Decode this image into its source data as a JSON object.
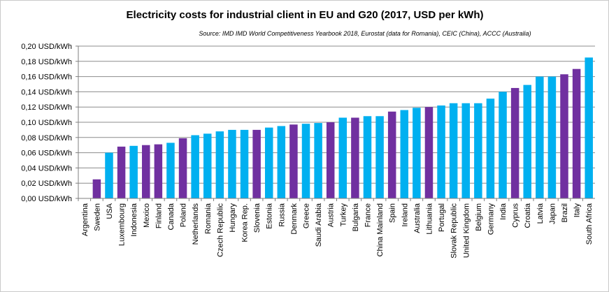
{
  "chart_data": {
    "type": "bar",
    "title": "Electricity costs for industrial client in EU and G20 (2017, USD per kWh)",
    "subtitle": "Source: IMD  IMD World Competitiveness Yearbook 2018, Eurostat (data for Romania), CEIC (China), ACCC (Australia)",
    "ylim": [
      0,
      0.2
    ],
    "yticks": [
      "0,00 USD/kWh",
      "0,02 USD/kWh",
      "0,04 USD/kWh",
      "0,06 USD/kWh",
      "0,08 USD/kWh",
      "0,10 USD/kWh",
      "0,12 USD/kWh",
      "0,14 USD/kWh",
      "0,16 USD/kWh",
      "0,18 USD/kWh",
      "0,20 USD/kWh"
    ],
    "grid": true,
    "colors": {
      "purple": "#7030a0",
      "blue": "#00b0f0"
    },
    "categories": [
      "Argentina",
      "Sweden",
      "USA",
      "Luxembourg",
      "Indonesia",
      "Mexico",
      "Finland",
      "Canada",
      "Poland",
      "Netherlands",
      "Romania",
      "Czech Republic",
      "Hungary",
      "Korea Rep.",
      "Slovenia",
      "Estonia",
      "Russia",
      "Denmark",
      "Greece",
      "Saudi Arabia",
      "Austria",
      "Turkey",
      "Bulgaria",
      "France",
      "China Mainland",
      "Spain",
      "Ireland",
      "Australia",
      "Lithuania",
      "Portugal",
      "Slovak Republic",
      "United Kingdom",
      "Belgium",
      "Germany",
      "India",
      "Cyprus",
      "Croatia",
      "Latvia",
      "Japan",
      "Brazil",
      "Italy",
      "South Africa"
    ],
    "values": [
      null,
      0.025,
      0.06,
      0.068,
      0.069,
      0.07,
      0.071,
      0.073,
      0.079,
      0.083,
      0.085,
      0.088,
      0.09,
      0.09,
      0.09,
      0.093,
      0.095,
      0.097,
      0.098,
      0.099,
      0.1,
      0.106,
      0.106,
      0.108,
      0.108,
      0.114,
      0.116,
      0.119,
      0.12,
      0.122,
      0.125,
      0.125,
      0.125,
      0.131,
      0.14,
      0.145,
      0.149,
      0.16,
      0.16,
      0.163,
      0.17,
      0.185
    ],
    "bar_colors": [
      "",
      "purple",
      "blue",
      "purple",
      "blue",
      "purple",
      "purple",
      "blue",
      "purple",
      "blue",
      "blue",
      "blue",
      "blue",
      "blue",
      "purple",
      "blue",
      "blue",
      "purple",
      "blue",
      "blue",
      "purple",
      "blue",
      "purple",
      "blue",
      "blue",
      "purple",
      "blue",
      "blue",
      "purple",
      "blue",
      "blue",
      "blue",
      "blue",
      "blue",
      "blue",
      "purple",
      "blue",
      "blue",
      "blue",
      "purple",
      "purple",
      "blue"
    ]
  }
}
